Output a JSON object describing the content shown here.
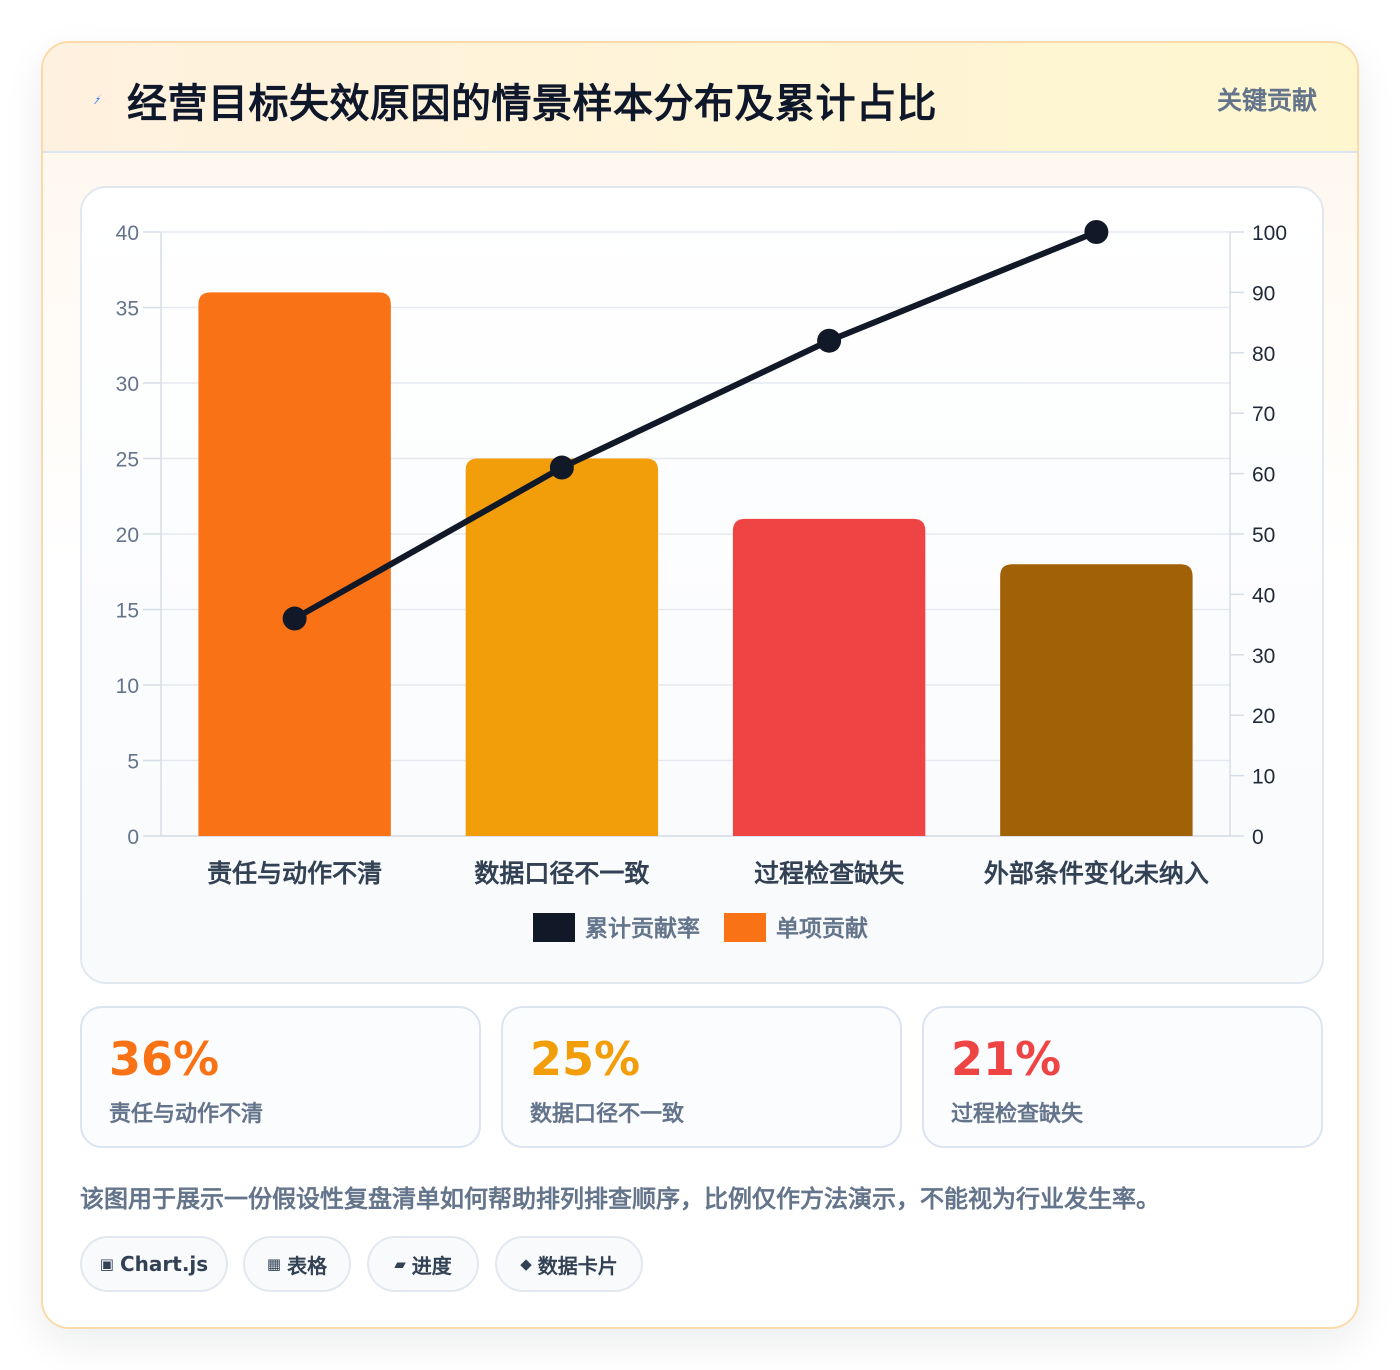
{
  "header": {
    "title": "经营目标失效原因的情景样本分布及累计占比",
    "badge": "关键贡献",
    "bolt_color": "#3b82f6"
  },
  "chart_data": {
    "type": "bar",
    "categories": [
      "责任与动作不清",
      "数据口径不一致",
      "过程检查缺失",
      "外部条件变化未纳入"
    ],
    "series": [
      {
        "name": "单项贡献",
        "type": "bar",
        "axis": "left",
        "values": [
          36,
          25,
          21,
          18
        ],
        "colors": [
          "#f97316",
          "#f29e0b",
          "#ef4444",
          "#a16207"
        ],
        "legend_color": "#f97316"
      },
      {
        "name": "累计贡献率",
        "type": "line",
        "axis": "right",
        "values": [
          36,
          61,
          82,
          100
        ],
        "color": "#111827"
      }
    ],
    "y_left": {
      "min": 0,
      "max": 40,
      "ticks": [
        0,
        5,
        10,
        15,
        20,
        25,
        30,
        35,
        40
      ]
    },
    "y_right": {
      "min": 0,
      "max": 100,
      "ticks": [
        0,
        10,
        20,
        30,
        40,
        50,
        60,
        70,
        80,
        90,
        100
      ]
    },
    "grid": true,
    "legend_position": "bottom",
    "legend_order": [
      "累计贡献率",
      "单项贡献"
    ]
  },
  "stats": [
    {
      "value": "36%",
      "label": "责任与动作不清",
      "color": "#f97316"
    },
    {
      "value": "25%",
      "label": "数据口径不一致",
      "color": "#f29e0b"
    },
    {
      "value": "21%",
      "label": "过程检查缺失",
      "color": "#ef4444"
    }
  ],
  "note": "该图用于展示一份假设性复盘清单如何帮助排列排查顺序，比例仅作方法演示，不能视为行业发生率。",
  "tags": [
    {
      "icon": "▣",
      "icon_name": "chart-icon",
      "label": "Chart.js"
    },
    {
      "icon": "▦",
      "icon_name": "table-icon",
      "label": "表格"
    },
    {
      "icon": "▰",
      "icon_name": "progress-icon",
      "label": "进度"
    },
    {
      "icon": "◆",
      "icon_name": "card-icon",
      "label": "数据卡片"
    }
  ]
}
